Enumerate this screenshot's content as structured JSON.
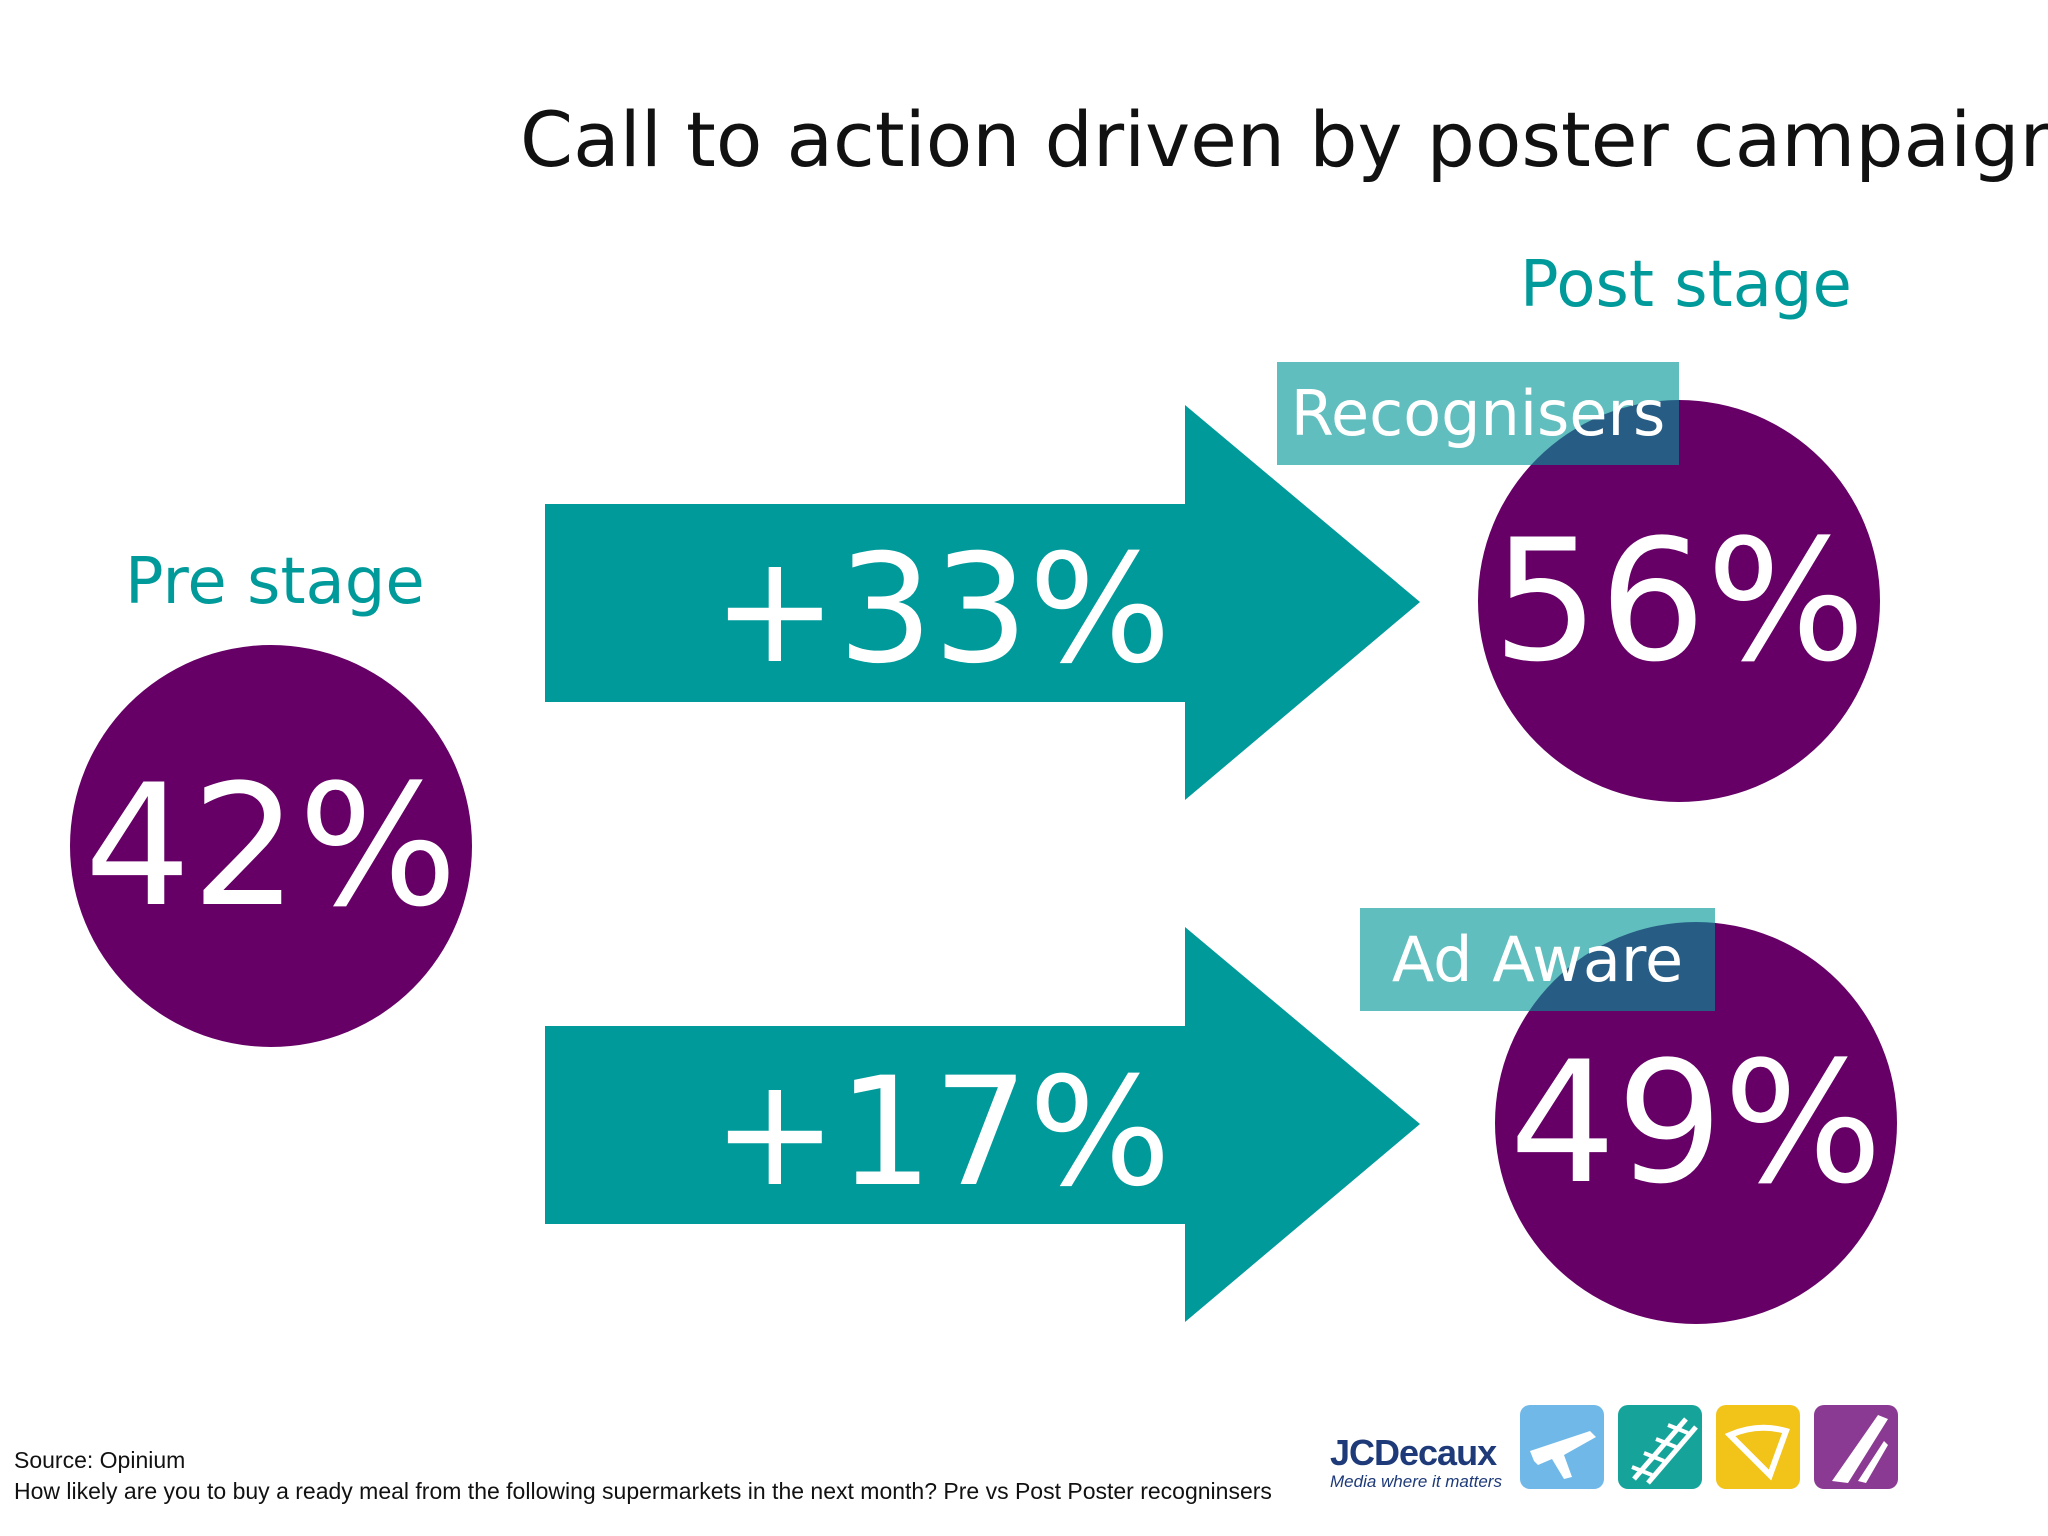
{
  "title": "Call to action driven by poster campaign",
  "pre_stage": {
    "label": "Pre stage",
    "value": "42%"
  },
  "post_stage": {
    "label": "Post stage",
    "recognisers": {
      "tag": "Recognisers",
      "value": "56%",
      "uplift": "+33%"
    },
    "ad_aware": {
      "tag": "Ad Aware",
      "value": "49%",
      "uplift": "+17%"
    }
  },
  "footer": {
    "source": "Source: Opinium",
    "question": "How likely are you to buy a ready meal from the following supermarkets in the next month? Pre vs Post Poster recogninsers"
  },
  "logo": {
    "brand": "JCDecaux",
    "tagline": "Media where it matters",
    "tiles": [
      "airplane-icon",
      "rail-track-icon",
      "billboard-icon",
      "road-icon"
    ]
  },
  "colors": {
    "teal": "#009a9a",
    "purple": "#660066",
    "tag_bg": "#5fb7b3"
  }
}
